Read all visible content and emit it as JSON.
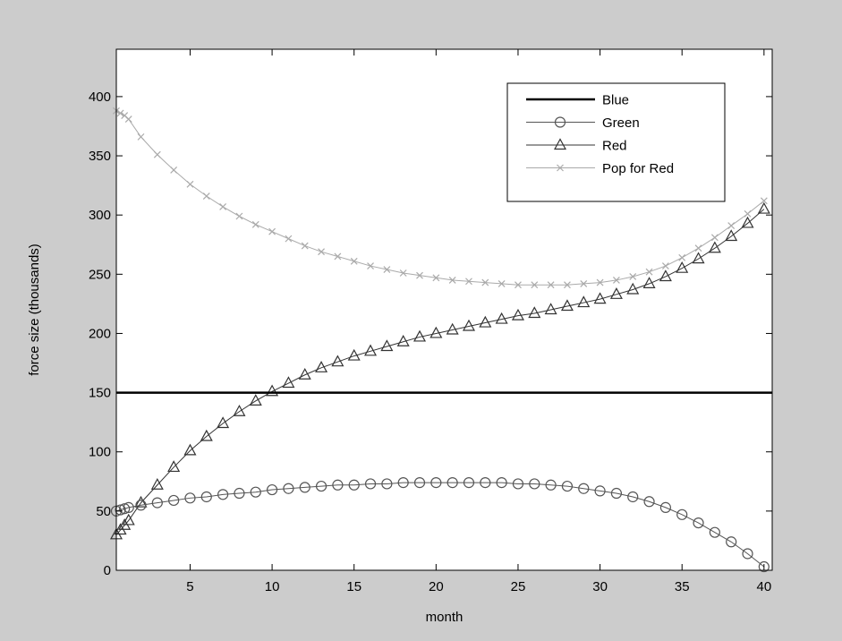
{
  "chart_data": {
    "type": "line",
    "xlabel": "month",
    "ylabel": "force size (thousands)",
    "xlim": [
      0.5,
      40.5
    ],
    "ylim": [
      0,
      440
    ],
    "xticks": [
      5,
      10,
      15,
      20,
      25,
      30,
      35,
      40
    ],
    "yticks": [
      0,
      50,
      100,
      150,
      200,
      250,
      300,
      350,
      400
    ],
    "grid": false,
    "legend_position": "top-right",
    "series": [
      {
        "name": "Blue",
        "color": "#000000",
        "marker": "none",
        "line_width": "thick",
        "x": [
          0.5,
          40.5
        ],
        "y": [
          150,
          150
        ]
      },
      {
        "name": "Green",
        "color": "#555555",
        "marker": "circle",
        "x": [
          0.5,
          0.75,
          1,
          1.25,
          2,
          3,
          4,
          5,
          6,
          7,
          8,
          9,
          10,
          11,
          12,
          13,
          14,
          15,
          16,
          17,
          18,
          19,
          20,
          21,
          22,
          23,
          24,
          25,
          26,
          27,
          28,
          29,
          30,
          31,
          32,
          33,
          34,
          35,
          36,
          37,
          38,
          39,
          40
        ],
        "y": [
          50,
          51,
          52,
          53,
          55,
          57,
          59,
          61,
          62,
          64,
          65,
          66,
          68,
          69,
          70,
          71,
          72,
          72,
          73,
          73,
          74,
          74,
          74,
          74,
          74,
          74,
          74,
          73,
          73,
          72,
          71,
          69,
          67,
          65,
          62,
          58,
          53,
          47,
          40,
          32,
          24,
          14,
          3
        ]
      },
      {
        "name": "Red",
        "color": "#333333",
        "marker": "triangle",
        "x": [
          0.5,
          0.75,
          1,
          1.25,
          2,
          3,
          4,
          5,
          6,
          7,
          8,
          9,
          10,
          11,
          12,
          13,
          14,
          15,
          16,
          17,
          18,
          19,
          20,
          21,
          22,
          23,
          24,
          25,
          26,
          27,
          28,
          29,
          30,
          31,
          32,
          33,
          34,
          35,
          36,
          37,
          38,
          39,
          40
        ],
        "y": [
          30,
          34,
          38,
          42,
          57,
          72,
          87,
          101,
          113,
          124,
          134,
          143,
          151,
          158,
          165,
          171,
          176,
          181,
          185,
          189,
          193,
          197,
          200,
          203,
          206,
          209,
          212,
          215,
          217,
          220,
          223,
          226,
          229,
          233,
          237,
          242,
          248,
          255,
          263,
          272,
          282,
          293,
          305
        ]
      },
      {
        "name": "Pop for Red",
        "color": "#aaaaaa",
        "marker": "x",
        "x": [
          0.5,
          0.75,
          1,
          1.25,
          2,
          3,
          4,
          5,
          6,
          7,
          8,
          9,
          10,
          11,
          12,
          13,
          14,
          15,
          16,
          17,
          18,
          19,
          20,
          21,
          22,
          23,
          24,
          25,
          26,
          27,
          28,
          29,
          30,
          31,
          32,
          33,
          34,
          35,
          36,
          37,
          38,
          39,
          40
        ],
        "y": [
          388,
          386,
          384,
          381,
          366,
          351,
          338,
          326,
          316,
          307,
          299,
          292,
          286,
          280,
          274,
          269,
          265,
          261,
          257,
          254,
          251,
          249,
          247,
          245,
          244,
          243,
          242,
          241,
          241,
          241,
          241,
          242,
          243,
          245,
          248,
          252,
          257,
          264,
          272,
          281,
          291,
          301,
          312
        ]
      }
    ]
  }
}
